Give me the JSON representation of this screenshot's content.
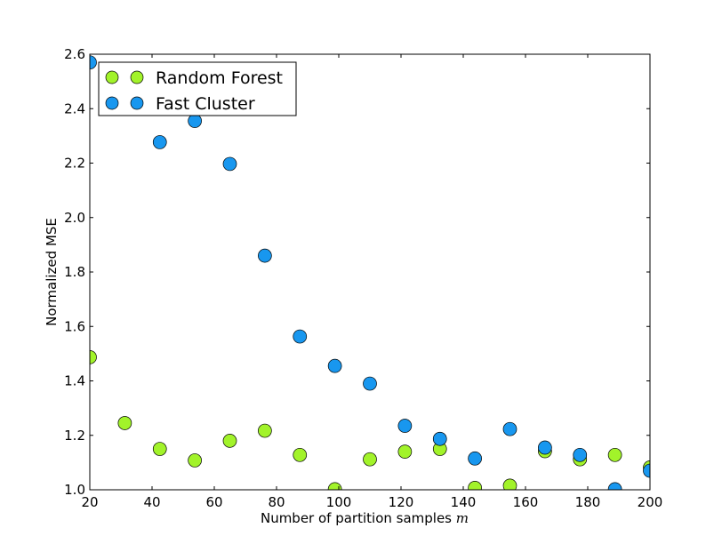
{
  "chart_data": {
    "type": "scatter",
    "title": "",
    "xlabel": "Number of partition samples",
    "xlabel_var": "m",
    "ylabel": "Normalized MSE",
    "xlim": [
      20,
      200
    ],
    "ylim": [
      1.0,
      2.6
    ],
    "xticks": [
      20,
      40,
      60,
      80,
      100,
      120,
      140,
      160,
      180,
      200
    ],
    "yticks": [
      1.0,
      1.2,
      1.4,
      1.6,
      1.8,
      2.0,
      2.2,
      2.4,
      2.6
    ],
    "ytick_labels": [
      "1.0",
      "1.2",
      "1.4",
      "1.6",
      "1.8",
      "2.0",
      "2.2",
      "2.4",
      "2.6"
    ],
    "grid": false,
    "legend_position": "top-left",
    "x": [
      20,
      31.25,
      42.5,
      53.75,
      65,
      76.25,
      87.5,
      98.75,
      110,
      121.25,
      132.5,
      143.75,
      155,
      166.25,
      177.5,
      188.75,
      200
    ],
    "series": [
      {
        "name": "Random Forest",
        "color": "#a2f32a",
        "values": [
          1.487,
          1.245,
          1.15,
          1.108,
          1.18,
          1.217,
          1.128,
          1.002,
          1.112,
          1.14,
          1.15,
          1.007,
          1.015,
          1.142,
          1.112,
          1.128,
          1.082
        ]
      },
      {
        "name": "Fast Cluster",
        "color": "#1897ef",
        "values": [
          2.57,
          null,
          2.277,
          2.355,
          2.197,
          1.86,
          1.563,
          1.455,
          1.39,
          1.235,
          1.187,
          1.115,
          1.223,
          1.155,
          1.128,
          1.002,
          1.07
        ]
      }
    ]
  }
}
